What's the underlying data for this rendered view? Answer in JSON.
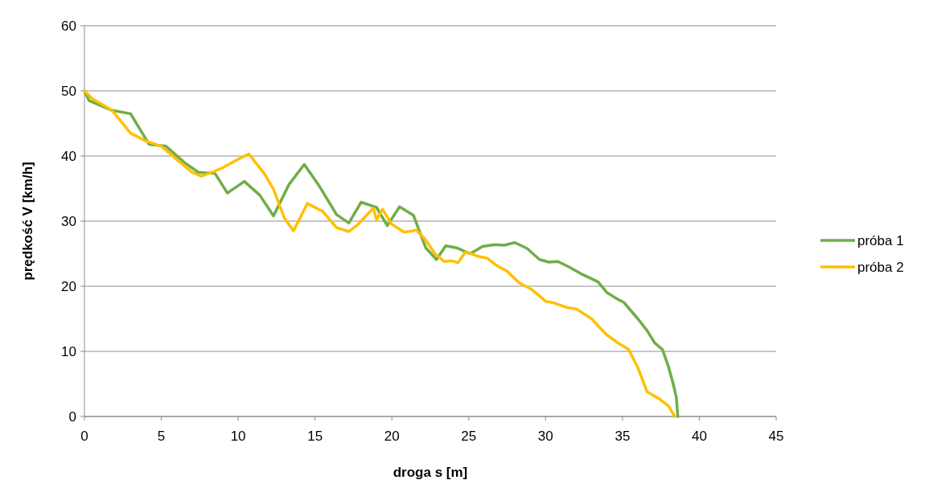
{
  "chart_data": {
    "type": "line",
    "xlabel": "droga s [m]",
    "ylabel": "prędkość V [km/h]",
    "xlim": [
      0,
      45
    ],
    "xticks": [
      0,
      5,
      10,
      15,
      20,
      25,
      30,
      35,
      40,
      45
    ],
    "ylim": [
      0,
      60
    ],
    "yticks": [
      0,
      10,
      20,
      30,
      40,
      50,
      60
    ],
    "grid": "y",
    "legend": "right",
    "marker": "none",
    "line_style": "solid",
    "series": [
      {
        "name": "próba 1",
        "color": "#70ad47",
        "x": [
          0,
          0.3,
          1.8,
          3,
          4.2,
          5.3,
          6.5,
          7.4,
          8.5,
          9.3,
          10.4,
          11.4,
          12.3,
          13.3,
          14.3,
          15.3,
          16.4,
          17.2,
          18,
          19,
          19.7,
          20.5,
          21.4,
          22.2,
          22.9,
          23.5,
          24.2,
          25.1,
          25.9,
          26.7,
          27.3,
          28,
          28.8,
          29.6,
          30.2,
          30.8,
          31.5,
          32.4,
          33.4,
          34,
          34.7,
          35.1,
          36,
          36.6,
          37.1,
          37.6,
          38,
          38.3,
          38.5,
          38.6
        ],
        "values": [
          50,
          48.5,
          47,
          46.5,
          41.8,
          41.5,
          39,
          37.5,
          37.3,
          34.3,
          36.1,
          34,
          30.8,
          35.6,
          38.7,
          35.3,
          31,
          29.7,
          32.9,
          32.1,
          29.3,
          32.2,
          30.9,
          25.9,
          24.1,
          26.2,
          25.9,
          25,
          26.1,
          26.4,
          26.3,
          26.7,
          25.8,
          24.1,
          23.7,
          23.8,
          23,
          21.8,
          20.7,
          19,
          18,
          17.5,
          15,
          13.2,
          11.3,
          10.3,
          7.6,
          5,
          3,
          0
        ]
      },
      {
        "name": "próba 2",
        "color": "#ffc000",
        "x": [
          0,
          0.5,
          1.8,
          3,
          4,
          5,
          6,
          7,
          7.6,
          8.3,
          9,
          10,
          10.7,
          11.7,
          12.3,
          13,
          13.6,
          14.5,
          15.5,
          16.4,
          17.2,
          17.8,
          18.8,
          19,
          19.4,
          20,
          20.8,
          21.6,
          22.2,
          22.8,
          23.4,
          23.9,
          24.3,
          24.8,
          25.6,
          26.2,
          26.8,
          27.5,
          28.3,
          29.1,
          30,
          30.6,
          31.3,
          32,
          33,
          33.5,
          34,
          34.7,
          35.4,
          36,
          36.6,
          37.4,
          38,
          38.4
        ],
        "values": [
          50,
          48.8,
          47,
          43.5,
          42.3,
          41.5,
          39.5,
          37.5,
          36.9,
          37.5,
          38.2,
          39.5,
          40.3,
          37.3,
          34.9,
          30.5,
          28.5,
          32.7,
          31.5,
          29,
          28.4,
          29.5,
          32,
          30.2,
          31.8,
          29.5,
          28.3,
          28.6,
          27.1,
          25,
          23.8,
          23.9,
          23.6,
          25.3,
          24.6,
          24.3,
          23.2,
          22.3,
          20.5,
          19.5,
          17.7,
          17.4,
          16.8,
          16.5,
          15,
          13.7,
          12.5,
          11.3,
          10.3,
          7.5,
          3.8,
          2.7,
          1.6,
          0
        ]
      }
    ]
  }
}
